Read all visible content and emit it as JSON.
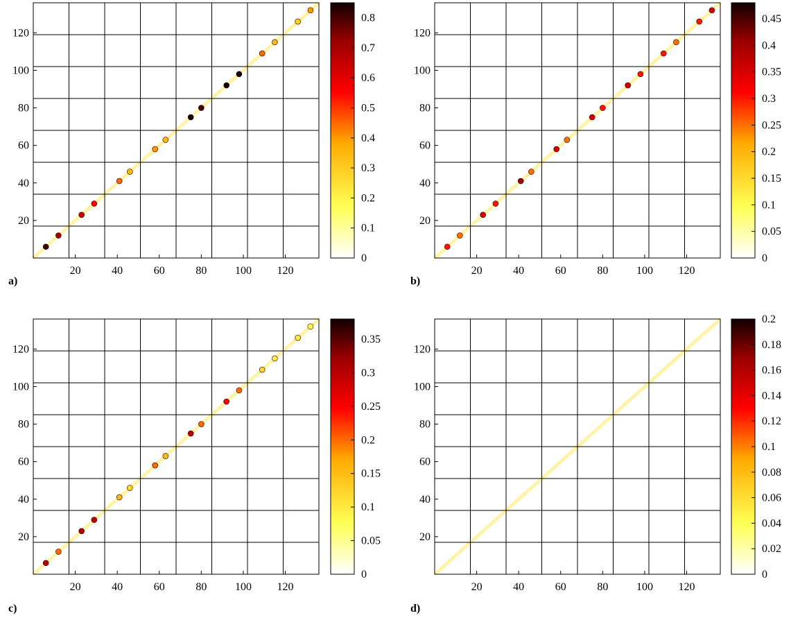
{
  "chart_data": [
    {
      "type": "heatmap",
      "panel_label": "a)",
      "xlim": [
        0,
        136
      ],
      "ylim": [
        0,
        136
      ],
      "xticks": [
        20,
        40,
        60,
        80,
        100,
        120
      ],
      "yticks": [
        20,
        40,
        60,
        80,
        100,
        120
      ],
      "block_boundaries": [
        17,
        34,
        51,
        68,
        85,
        102,
        119
      ],
      "colorbar": {
        "min": 0,
        "max": 0.85,
        "ticks": [
          "0",
          "0.1",
          "0.2",
          "0.3",
          "0.4",
          "0.5",
          "0.6",
          "0.7",
          "0.8"
        ]
      },
      "diagonal_peaks": [
        {
          "x": 6,
          "y": 6,
          "value": 0.8
        },
        {
          "x": 12,
          "y": 12,
          "value": 0.7
        },
        {
          "x": 23,
          "y": 23,
          "value": 0.65
        },
        {
          "x": 29,
          "y": 29,
          "value": 0.55
        },
        {
          "x": 41,
          "y": 41,
          "value": 0.45
        },
        {
          "x": 46,
          "y": 46,
          "value": 0.35
        },
        {
          "x": 58,
          "y": 58,
          "value": 0.4
        },
        {
          "x": 63,
          "y": 63,
          "value": 0.35
        },
        {
          "x": 75,
          "y": 75,
          "value": 0.85
        },
        {
          "x": 80,
          "y": 80,
          "value": 0.8
        },
        {
          "x": 92,
          "y": 92,
          "value": 0.85
        },
        {
          "x": 98,
          "y": 98,
          "value": 0.85
        },
        {
          "x": 109,
          "y": 109,
          "value": 0.45
        },
        {
          "x": 115,
          "y": 115,
          "value": 0.35
        },
        {
          "x": 126,
          "y": 126,
          "value": 0.3
        },
        {
          "x": 132,
          "y": 132,
          "value": 0.4
        }
      ]
    },
    {
      "type": "heatmap",
      "panel_label": "b)",
      "xlim": [
        0,
        136
      ],
      "ylim": [
        0,
        136
      ],
      "xticks": [
        20,
        40,
        60,
        80,
        100,
        120
      ],
      "yticks": [
        20,
        40,
        60,
        80,
        100,
        120
      ],
      "block_boundaries": [
        17,
        34,
        51,
        68,
        85,
        102,
        119
      ],
      "colorbar": {
        "min": 0,
        "max": 0.48,
        "ticks": [
          "0",
          "0.05",
          "0.1",
          "0.15",
          "0.2",
          "0.25",
          "0.3",
          "0.35",
          "0.4",
          "0.45"
        ]
      },
      "diagonal_peaks": [
        {
          "x": 6,
          "y": 6,
          "value": 0.3
        },
        {
          "x": 12,
          "y": 12,
          "value": 0.25
        },
        {
          "x": 23,
          "y": 23,
          "value": 0.35
        },
        {
          "x": 29,
          "y": 29,
          "value": 0.3
        },
        {
          "x": 41,
          "y": 41,
          "value": 0.4
        },
        {
          "x": 46,
          "y": 46,
          "value": 0.25
        },
        {
          "x": 58,
          "y": 58,
          "value": 0.35
        },
        {
          "x": 63,
          "y": 63,
          "value": 0.25
        },
        {
          "x": 75,
          "y": 75,
          "value": 0.35
        },
        {
          "x": 80,
          "y": 80,
          "value": 0.3
        },
        {
          "x": 92,
          "y": 92,
          "value": 0.35
        },
        {
          "x": 98,
          "y": 98,
          "value": 0.3
        },
        {
          "x": 109,
          "y": 109,
          "value": 0.3
        },
        {
          "x": 115,
          "y": 115,
          "value": 0.25
        },
        {
          "x": 126,
          "y": 126,
          "value": 0.3
        },
        {
          "x": 132,
          "y": 132,
          "value": 0.35
        }
      ]
    },
    {
      "type": "heatmap",
      "panel_label": "c)",
      "xlim": [
        0,
        136
      ],
      "ylim": [
        0,
        136
      ],
      "xticks": [
        20,
        40,
        60,
        80,
        100,
        120
      ],
      "yticks": [
        20,
        40,
        60,
        80,
        100,
        120
      ],
      "block_boundaries": [
        17,
        34,
        51,
        68,
        85,
        102,
        119
      ],
      "colorbar": {
        "min": 0,
        "max": 0.38,
        "ticks": [
          "0",
          "0.05",
          "0.1",
          "0.15",
          "0.2",
          "0.25",
          "0.3",
          "0.35"
        ]
      },
      "diagonal_peaks": [
        {
          "x": 6,
          "y": 6,
          "value": 0.3
        },
        {
          "x": 12,
          "y": 12,
          "value": 0.2
        },
        {
          "x": 23,
          "y": 23,
          "value": 0.3
        },
        {
          "x": 29,
          "y": 29,
          "value": 0.3
        },
        {
          "x": 41,
          "y": 41,
          "value": 0.15
        },
        {
          "x": 46,
          "y": 46,
          "value": 0.12
        },
        {
          "x": 58,
          "y": 58,
          "value": 0.2
        },
        {
          "x": 63,
          "y": 63,
          "value": 0.15
        },
        {
          "x": 75,
          "y": 75,
          "value": 0.3
        },
        {
          "x": 80,
          "y": 80,
          "value": 0.2
        },
        {
          "x": 92,
          "y": 92,
          "value": 0.25
        },
        {
          "x": 98,
          "y": 98,
          "value": 0.2
        },
        {
          "x": 109,
          "y": 109,
          "value": 0.12
        },
        {
          "x": 115,
          "y": 115,
          "value": 0.1
        },
        {
          "x": 126,
          "y": 126,
          "value": 0.1
        },
        {
          "x": 132,
          "y": 132,
          "value": 0.08
        }
      ]
    },
    {
      "type": "heatmap",
      "panel_label": "d)",
      "xlim": [
        0,
        136
      ],
      "ylim": [
        0,
        136
      ],
      "xticks": [
        20,
        40,
        60,
        80,
        100,
        120
      ],
      "yticks": [
        20,
        40,
        60,
        80,
        100,
        120
      ],
      "block_boundaries": [
        17,
        34,
        51,
        68,
        85,
        102,
        119
      ],
      "colorbar": {
        "min": 0,
        "max": 0.2,
        "ticks": [
          "0",
          "0.02",
          "0.04",
          "0.06",
          "0.08",
          "0.1",
          "0.12",
          "0.14",
          "0.16",
          "0.18",
          "0.2"
        ]
      },
      "diagonal_peaks": []
    }
  ]
}
